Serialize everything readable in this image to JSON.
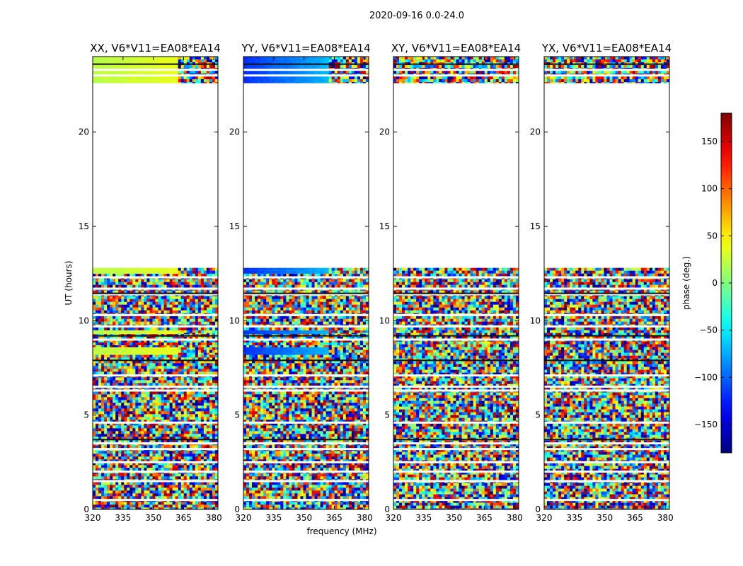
{
  "chart_data": {
    "type": "heatmap",
    "suptitle": "2020-09-16 0.0-24.0",
    "xlabel": "frequency (MHz)",
    "ylabel": "UT (hours)",
    "xlim": [
      320,
      382
    ],
    "ylim": [
      0,
      24
    ],
    "xticks": [
      320,
      335,
      350,
      365,
      380
    ],
    "yticks": [
      0,
      5,
      10,
      15,
      20
    ],
    "no_data_gap_hours": [
      12.8,
      22.6
    ],
    "panels": [
      {
        "title": "XX, V6*V11=EA08*EA14",
        "base_phase_deg": 20,
        "coherent_rows_ut": [
          [
            22.6,
            24.0
          ],
          [
            12.5,
            12.8
          ],
          [
            8.2,
            8.6
          ],
          [
            9.3,
            9.5
          ]
        ]
      },
      {
        "title": "YY, V6*V11=EA08*EA14",
        "base_phase_deg": -120,
        "coherent_rows_ut": [
          [
            22.6,
            24.0
          ],
          [
            12.5,
            12.8
          ],
          [
            8.2,
            8.6
          ],
          [
            9.3,
            9.5
          ]
        ]
      },
      {
        "title": "XY, V6*V11=EA08*EA14",
        "base_phase_deg": null,
        "coherent_rows_ut": []
      },
      {
        "title": "YX, V6*V11=EA08*EA14",
        "base_phase_deg": null,
        "coherent_rows_ut": []
      }
    ],
    "colorbar": {
      "label": "phase (deg.)",
      "range": [
        -180,
        180
      ],
      "ticks": [
        150,
        100,
        50,
        0,
        -50,
        -100,
        -150
      ],
      "tick_labels": [
        "150",
        "100",
        "50",
        "0",
        "−50",
        "−100",
        "−150"
      ],
      "colormap": "jet"
    }
  }
}
